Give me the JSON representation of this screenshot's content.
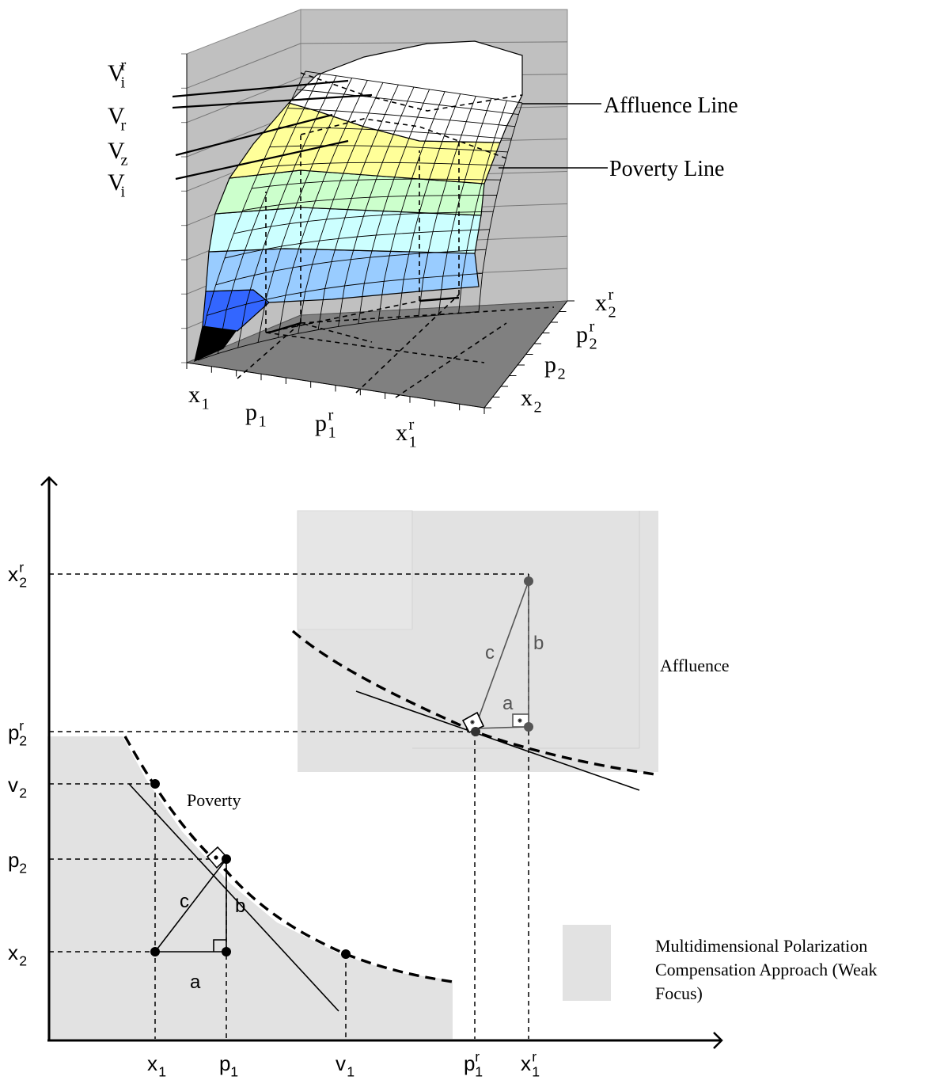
{
  "top_diagram": {
    "left_labels": [
      {
        "base": "V",
        "sub": "i",
        "sup": "r"
      },
      {
        "base": "V",
        "sub": "r",
        "sup": ""
      },
      {
        "base": "V",
        "sub": "z",
        "sup": ""
      },
      {
        "base": "V",
        "sub": "i",
        "sup": ""
      }
    ],
    "line_labels": {
      "affluence": "Affluence Line",
      "poverty": "Poverty Line"
    },
    "bottom_ticks": [
      {
        "base": "x",
        "sub": "1",
        "sup": ""
      },
      {
        "base": "p",
        "sub": "1",
        "sup": ""
      },
      {
        "base": "p",
        "sub": "1",
        "sup": "r"
      },
      {
        "base": "x",
        "sub": "1",
        "sup": "r"
      }
    ],
    "right_ticks": [
      {
        "base": "x",
        "sub": "2",
        "sup": "r"
      },
      {
        "base": "p",
        "sub": "2",
        "sup": "r"
      },
      {
        "base": "p",
        "sub": "2",
        "sup": ""
      },
      {
        "base": "x",
        "sub": "2",
        "sup": ""
      }
    ]
  },
  "bottom_diagram": {
    "y_ticks": [
      {
        "base": "x",
        "sub": "2",
        "sup": "r"
      },
      {
        "base": "p",
        "sub": "2",
        "sup": "r"
      },
      {
        "base": "v",
        "sub": "2",
        "sup": ""
      },
      {
        "base": "p",
        "sub": "2",
        "sup": ""
      },
      {
        "base": "x",
        "sub": "2",
        "sup": ""
      }
    ],
    "x_ticks": [
      {
        "base": "x",
        "sub": "1",
        "sup": ""
      },
      {
        "base": "p",
        "sub": "1",
        "sup": ""
      },
      {
        "base": "v",
        "sub": "1",
        "sup": ""
      },
      {
        "base": "p",
        "sub": "1",
        "sup": "r"
      },
      {
        "base": "x",
        "sub": "1",
        "sup": "r"
      }
    ],
    "region_labels": {
      "poverty": "Poverty",
      "affluence": "Affluence"
    },
    "triangle_labels": {
      "poverty": {
        "a": "a",
        "b": "b",
        "c": "c"
      },
      "affluence": {
        "a": "a",
        "b": "b",
        "c": "c"
      }
    },
    "legend": {
      "lines": [
        "Multidimensional Polarization",
        "Compensation Approach (Weak",
        "Focus)"
      ]
    }
  },
  "colors": {
    "region_fill": "#e2e2e2",
    "wall_fill": "#c0c0c0",
    "floor_fill": "#808080",
    "band_white": "#ffffff",
    "band_yellow": "#ffff99",
    "band_green": "#ccffcc",
    "band_cyan": "#ccffff",
    "band_lightblue": "#99ccff",
    "band_blue": "#3366ff",
    "band_black": "#000000"
  }
}
